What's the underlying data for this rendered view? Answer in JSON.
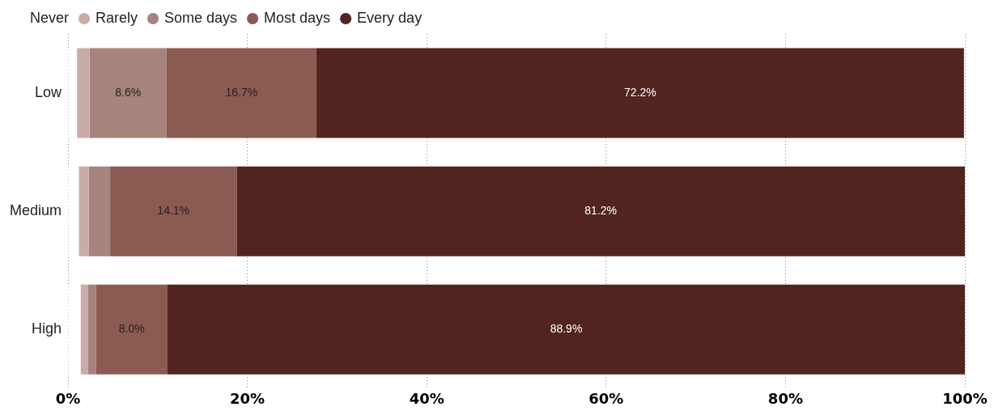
{
  "chart_data": {
    "type": "bar",
    "orientation": "horizontal",
    "stacked": true,
    "categories": [
      "Low",
      "Medium",
      "High"
    ],
    "series": [
      {
        "name": "Never",
        "color": "#ffffff",
        "values": [
          1.0,
          1.2,
          1.4
        ],
        "value_labels": [
          null,
          null,
          null
        ]
      },
      {
        "name": "Rarely",
        "color": "#c9aca8",
        "values": [
          1.4,
          1.1,
          0.8
        ],
        "value_labels": [
          null,
          null,
          null
        ]
      },
      {
        "name": "Some days",
        "color": "#a6847d",
        "values": [
          8.6,
          2.4,
          0.9
        ],
        "value_labels": [
          "8.6%",
          null,
          null
        ]
      },
      {
        "name": "Most days",
        "color": "#8b5a50",
        "values": [
          16.7,
          14.1,
          8.0
        ],
        "value_labels": [
          "16.7%",
          "14.1%",
          "8.0%"
        ]
      },
      {
        "name": "Every day",
        "color": "#512420",
        "values": [
          72.2,
          81.2,
          88.9
        ],
        "value_labels": [
          "72.2%",
          "81.2%",
          "88.9%"
        ]
      }
    ],
    "xlim": [
      0,
      100
    ],
    "xticks": [
      {
        "value": 0,
        "label": "0%"
      },
      {
        "value": 20,
        "label": "20%"
      },
      {
        "value": 40,
        "label": "40%"
      },
      {
        "value": 60,
        "label": "60%"
      },
      {
        "value": 80,
        "label": "80%"
      },
      {
        "value": 100,
        "label": "100%"
      }
    ],
    "grid": "x",
    "legend": "top left"
  }
}
